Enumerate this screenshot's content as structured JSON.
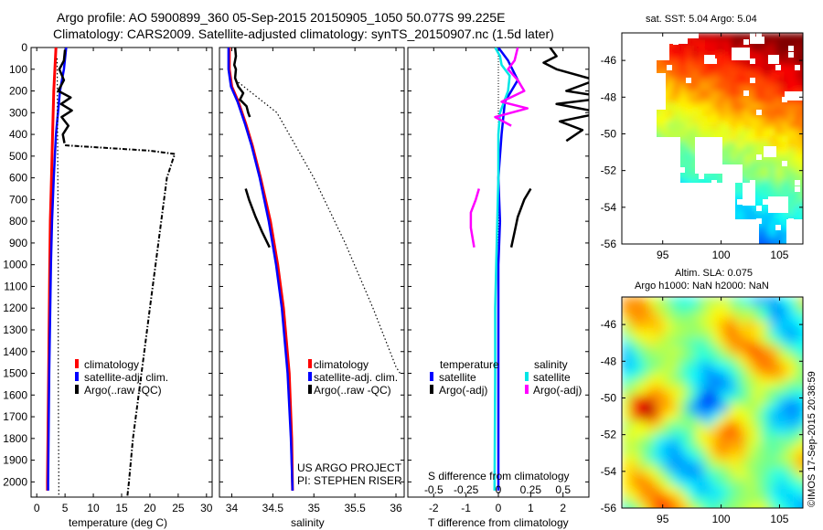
{
  "header": {
    "line1": "Argo profile: AO 5900899_360 05-Sep-2015 20150905_1050 50.077S 99.225E",
    "line2": "Climatology: CARS2009. Satellite-adjusted climatology: synTS_20150907.nc (1.5d later)"
  },
  "colors": {
    "climatology": "#ff0000",
    "satellite": "#0000ff",
    "argo": "#000000",
    "sat_salinity": "#00e6e6",
    "argo_salinity": "#ff00ff"
  },
  "chart_data": [
    {
      "type": "line",
      "panel": "temperature",
      "xlabel": "temperature (deg C)",
      "xlim": [
        -1,
        31
      ],
      "xticks": [
        0,
        5,
        10,
        15,
        20,
        25,
        30
      ],
      "ylim": [
        2070,
        0
      ],
      "yticks": [
        0,
        100,
        200,
        300,
        400,
        500,
        600,
        700,
        800,
        900,
        1000,
        1100,
        1200,
        1300,
        1400,
        1500,
        1600,
        1700,
        1800,
        1900,
        2000
      ],
      "legend": [
        "climatology",
        "satellite-adj. clim.",
        "Argo(..raw -QC)"
      ],
      "series": [
        {
          "name": "climatology",
          "depth": [
            0,
            100,
            200,
            400,
            600,
            800,
            1000,
            1500,
            2000,
            2040
          ],
          "value": [
            3.4,
            3.2,
            3.0,
            2.8,
            2.6,
            2.4,
            2.3,
            2.1,
            1.9,
            1.9
          ]
        },
        {
          "name": "satellite-adj. clim.",
          "depth": [
            0,
            100,
            200,
            400,
            600,
            800,
            1000,
            1500,
            2000,
            2040
          ],
          "value": [
            5.2,
            4.8,
            4.1,
            3.4,
            3.0,
            2.7,
            2.5,
            2.2,
            2.0,
            2.0
          ]
        },
        {
          "name": "Argo(..raw -QC) profile",
          "depth": [
            10,
            60,
            100,
            150,
            200,
            230,
            260,
            290,
            320,
            360,
            400,
            440
          ],
          "value": [
            5.0,
            4.8,
            4.0,
            4.8,
            3.8,
            6.0,
            4.3,
            6.2,
            4.4,
            5.6,
            4.6,
            4.9
          ]
        },
        {
          "name": "Argo(..raw -QC) spike",
          "depth": [
            450,
            475,
            490,
            520,
            600,
            700,
            800,
            900,
            1000,
            1200,
            1400,
            1600,
            1800,
            2000,
            2070
          ],
          "value": [
            5.0,
            20.0,
            24.4,
            24.0,
            23.0,
            22.5,
            22.0,
            21.5,
            21.0,
            20.0,
            19.0,
            18.0,
            17.0,
            16.3,
            16.0
          ]
        },
        {
          "name": "Argo(..raw -QC) dotted",
          "depth": [
            50,
            500,
            1000,
            1500,
            2000,
            2070
          ],
          "value": [
            3.6,
            3.7,
            3.8,
            3.8,
            3.9,
            3.9
          ]
        }
      ]
    },
    {
      "type": "line",
      "panel": "salinity",
      "xlabel": "salinity",
      "xlim": [
        33.85,
        36.1
      ],
      "xticks": [
        34,
        34.5,
        35,
        35.5,
        36
      ],
      "ylim": [
        2070,
        0
      ],
      "legend": [
        "climatology",
        "satellite-adj. clim.",
        "Argo(..raw -QC)"
      ],
      "annotations": [
        "US ARGO PROJECT",
        "PI: STEPHEN RISER"
      ],
      "series": [
        {
          "name": "climatology",
          "depth": [
            0,
            100,
            180,
            250,
            350,
            450,
            600,
            800,
            1000,
            1200,
            1500,
            1800,
            2040
          ],
          "value": [
            33.97,
            33.97,
            34.0,
            34.08,
            34.17,
            34.25,
            34.35,
            34.47,
            34.56,
            34.63,
            34.7,
            34.73,
            34.74
          ]
        },
        {
          "name": "satellite-adj. clim.",
          "depth": [
            0,
            100,
            180,
            250,
            350,
            450,
            600,
            800,
            1000,
            1200,
            1500,
            1800,
            2040
          ],
          "value": [
            33.96,
            33.96,
            33.99,
            34.07,
            34.16,
            34.24,
            34.34,
            34.45,
            34.54,
            34.61,
            34.68,
            34.72,
            34.74
          ]
        },
        {
          "name": "Argo(..raw -QC) upper",
          "depth": [
            0,
            40,
            80,
            100,
            140,
            180,
            210,
            240,
            270,
            300,
            320
          ],
          "value": [
            34.04,
            34.05,
            34.03,
            34.05,
            34.04,
            34.08,
            34.14,
            34.1,
            34.18,
            34.2,
            34.22
          ]
        },
        {
          "name": "Argo(..raw -QC) lower",
          "depth": [
            650,
            700,
            780,
            850,
            920
          ],
          "value": [
            34.17,
            34.21,
            34.29,
            34.37,
            34.46
          ]
        },
        {
          "name": "Argo(..raw -QC) dotted",
          "depth": [
            160,
            300,
            600,
            900,
            1200,
            1470,
            1500
          ],
          "value": [
            34.08,
            34.55,
            35.0,
            35.38,
            35.72,
            36.0,
            36.05
          ]
        }
      ]
    },
    {
      "type": "line",
      "panel": "difference",
      "xlabel": "T difference from climatology",
      "top_label": "S difference from climatology",
      "xlim": [
        -2.8,
        2.8
      ],
      "xticks": [
        -2,
        -1,
        0,
        1,
        2
      ],
      "s_ticks": [
        "-0.5",
        "-0.25",
        "0",
        "0.25",
        "0.5"
      ],
      "s_tick_positions": [
        -2,
        -1,
        0,
        1,
        2
      ],
      "ylim": [
        2070,
        0
      ],
      "legend": {
        "temperature_header": "temperature",
        "salinity_header": "salinity",
        "items": [
          {
            "label": "satellite",
            "group": "temperature"
          },
          {
            "label": "Argo(-adj)",
            "group": "temperature"
          },
          {
            "label": "satellite",
            "group": "salinity"
          },
          {
            "label": "Argo(-adj)",
            "group": "salinity"
          }
        ]
      },
      "series": [
        {
          "name": "satellite temperature",
          "depth": [
            0,
            60,
            150,
            250,
            400,
            600,
            800,
            1000,
            1500,
            2040
          ],
          "value": [
            0.0,
            0.3,
            0.6,
            0.2,
            0.1,
            0.0,
            0.05,
            0.0,
            0.0,
            0.0
          ]
        },
        {
          "name": "satellite salinity",
          "depth": [
            0,
            40,
            80,
            130,
            200,
            260,
            300,
            400,
            600,
            900,
            1200,
            1500,
            2040
          ],
          "value": [
            -0.1,
            0.05,
            0.1,
            0.35,
            0.3,
            0.15,
            0.05,
            0.0,
            0.0,
            -0.05,
            -0.1,
            -0.1,
            -0.12
          ]
        },
        {
          "name": "Argo temperature",
          "depth": [
            0,
            40,
            70,
            100,
            150,
            200,
            230,
            260,
            300,
            340,
            380,
            430
          ],
          "value": [
            1.6,
            1.8,
            1.4,
            1.8,
            3.0,
            2.1,
            3.4,
            1.8,
            3.2,
            1.9,
            2.6,
            2.1
          ]
        },
        {
          "name": "Argo temperature lower",
          "depth": [
            650,
            700,
            780,
            850,
            920
          ],
          "value": [
            1.0,
            0.8,
            0.6,
            0.5,
            0.4
          ]
        },
        {
          "name": "Argo salinity",
          "depth": [
            0,
            60,
            100,
            150,
            200,
            250,
            280,
            320,
            360
          ],
          "value": [
            0.6,
            0.5,
            0.3,
            0.6,
            0.8,
            0.1,
            0.9,
            -0.1,
            0.4
          ]
        },
        {
          "name": "Argo salinity lower",
          "depth": [
            650,
            700,
            760,
            830,
            920
          ],
          "value": [
            -0.6,
            -0.7,
            -0.85,
            -0.85,
            -0.75
          ]
        }
      ]
    },
    {
      "type": "heatmap",
      "panel": "sst_map",
      "title": "sat. SST: 5.04 Argo: 5.04",
      "xlim": [
        91.5,
        107
      ],
      "ylim": [
        -56,
        -44.5
      ],
      "xticks": [
        95,
        100,
        105
      ],
      "yticks": [
        -46,
        -48,
        -50,
        -52,
        -54,
        -56
      ]
    },
    {
      "type": "heatmap",
      "panel": "sla_map",
      "title_line1": "Altim. SLA: 0.075",
      "title_line2": "Argo h1000: NaN h2000: NaN",
      "xlim": [
        91.5,
        107
      ],
      "ylim": [
        -56,
        -44.5
      ],
      "xticks": [
        95,
        100,
        105
      ],
      "yticks": [
        -46,
        -48,
        -50,
        -52,
        -54,
        -56
      ],
      "side_label": "©IMOS 17-Sep-2015 20:38:59"
    }
  ]
}
